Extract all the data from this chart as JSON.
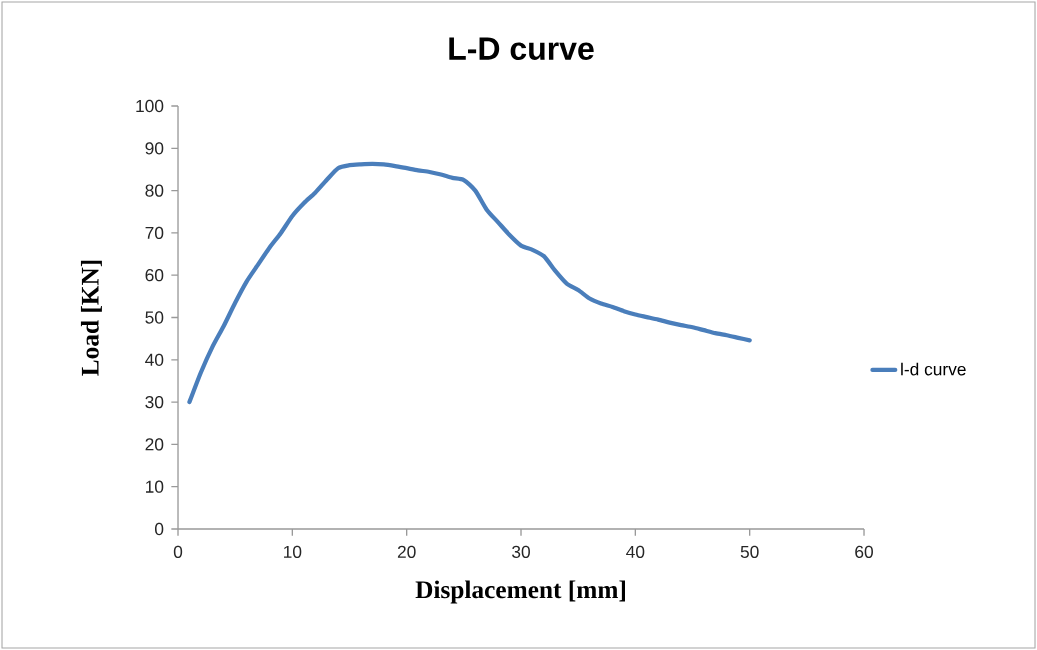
{
  "chart_data": {
    "type": "line",
    "title": "L-D curve",
    "xlabel": "Displacement [mm]",
    "ylabel": "Load [KN]",
    "x": [
      1,
      2,
      3,
      4,
      5,
      6,
      7,
      8,
      9,
      10,
      11,
      12,
      13,
      14,
      15,
      16,
      17,
      18,
      19,
      20,
      21,
      22,
      23,
      24,
      25,
      26,
      27,
      28,
      29,
      30,
      31,
      32,
      33,
      34,
      35,
      36,
      37,
      38,
      39,
      40,
      41,
      42,
      43,
      44,
      45,
      46,
      47,
      48,
      49,
      50
    ],
    "series": [
      {
        "name": "l-d curve",
        "color": "#4a7ebb",
        "values": [
          30,
          37,
          43,
          48,
          53.5,
          58.5,
          62.5,
          66.5,
          70,
          74,
          77,
          79.5,
          82.5,
          85.3,
          86,
          86.2,
          86.3,
          86.2,
          85.8,
          85.3,
          84.8,
          84.4,
          83.8,
          83,
          82.5,
          80,
          75.5,
          72.5,
          69.5,
          67,
          66,
          64.5,
          61,
          58,
          56.5,
          54.5,
          53.3,
          52.5,
          51.5,
          50.7,
          50.1,
          49.5,
          48.8,
          48.2,
          47.7,
          47,
          46.3,
          45.8,
          45.2,
          44.6
        ]
      }
    ],
    "xlim": [
      0,
      60
    ],
    "ylim": [
      0,
      100
    ],
    "xticks": [
      0,
      10,
      20,
      30,
      40,
      50,
      60
    ],
    "yticks": [
      0,
      10,
      20,
      30,
      40,
      50,
      60,
      70,
      80,
      90,
      100
    ],
    "legend": "right",
    "grid": false,
    "marker": "none",
    "line_style": "solid"
  }
}
